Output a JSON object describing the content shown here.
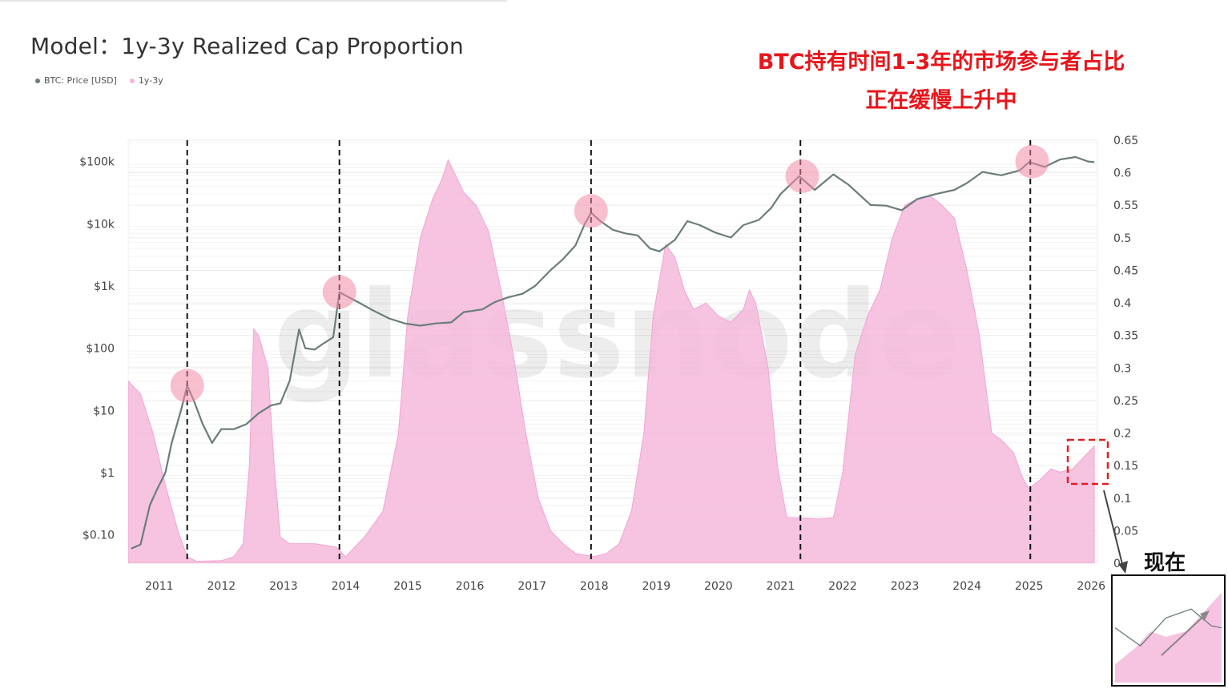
{
  "title": "Model：1y-3y Realized Cap Proportion",
  "legend": [
    {
      "label": "BTC: Price [USD]",
      "color": "#6b7d7a"
    },
    {
      "label": "1y-3y",
      "color": "#f5b8dc"
    }
  ],
  "annotation": {
    "line1": "BTC持有时间1-3年的市场参与者占比",
    "line2": "正在缓慢上升中",
    "color": "#e8151b"
  },
  "now_label": "现在",
  "watermark": "glassnode",
  "chart_data": {
    "type": "area",
    "x_axis": {
      "ticks": [
        "2011",
        "2012",
        "2013",
        "2014",
        "2015",
        "2016",
        "2017",
        "2018",
        "2019",
        "2020",
        "2021",
        "2022",
        "2023",
        "2024",
        "2025",
        "2026"
      ],
      "range": [
        2010.5,
        2026.1
      ]
    },
    "y_left": {
      "scale": "log",
      "ticks": [
        "$0.10",
        "$1",
        "$10",
        "$100",
        "$1k",
        "$10k",
        "$100k"
      ],
      "range": [
        0.035,
        220000
      ]
    },
    "y_right": {
      "ticks": [
        "0",
        "0.05",
        "0.1",
        "0.15",
        "0.2",
        "0.25",
        "0.3",
        "0.35",
        "0.4",
        "0.45",
        "0.5",
        "0.55",
        "0.6",
        "0.65"
      ],
      "range": [
        0,
        0.65
      ]
    },
    "grid": true,
    "series": [
      {
        "name": "1y-3y",
        "axis": "right",
        "color": "#f5b8dc",
        "points": [
          [
            2010.5,
            0.28
          ],
          [
            2010.7,
            0.26
          ],
          [
            2010.9,
            0.2
          ],
          [
            2011.1,
            0.12
          ],
          [
            2011.3,
            0.05
          ],
          [
            2011.45,
            0.01
          ],
          [
            2011.6,
            0.003
          ],
          [
            2012.0,
            0.004
          ],
          [
            2012.2,
            0.01
          ],
          [
            2012.35,
            0.03
          ],
          [
            2012.45,
            0.15
          ],
          [
            2012.52,
            0.36
          ],
          [
            2012.6,
            0.35
          ],
          [
            2012.75,
            0.3
          ],
          [
            2012.85,
            0.15
          ],
          [
            2012.95,
            0.04
          ],
          [
            2013.1,
            0.03
          ],
          [
            2013.5,
            0.03
          ],
          [
            2013.85,
            0.025
          ],
          [
            2014.0,
            0.01
          ],
          [
            2014.3,
            0.04
          ],
          [
            2014.6,
            0.08
          ],
          [
            2014.85,
            0.2
          ],
          [
            2015.0,
            0.38
          ],
          [
            2015.2,
            0.5
          ],
          [
            2015.4,
            0.56
          ],
          [
            2015.55,
            0.59
          ],
          [
            2015.65,
            0.62
          ],
          [
            2015.75,
            0.6
          ],
          [
            2015.9,
            0.57
          ],
          [
            2016.1,
            0.55
          ],
          [
            2016.3,
            0.51
          ],
          [
            2016.5,
            0.42
          ],
          [
            2016.7,
            0.32
          ],
          [
            2016.9,
            0.2
          ],
          [
            2017.1,
            0.1
          ],
          [
            2017.3,
            0.05
          ],
          [
            2017.5,
            0.03
          ],
          [
            2017.7,
            0.015
          ],
          [
            2018.0,
            0.01
          ],
          [
            2018.2,
            0.015
          ],
          [
            2018.4,
            0.03
          ],
          [
            2018.6,
            0.08
          ],
          [
            2018.8,
            0.2
          ],
          [
            2018.95,
            0.38
          ],
          [
            2019.15,
            0.49
          ],
          [
            2019.3,
            0.47
          ],
          [
            2019.45,
            0.42
          ],
          [
            2019.6,
            0.39
          ],
          [
            2019.8,
            0.4
          ],
          [
            2020.0,
            0.38
          ],
          [
            2020.2,
            0.37
          ],
          [
            2020.4,
            0.39
          ],
          [
            2020.5,
            0.42
          ],
          [
            2020.6,
            0.4
          ],
          [
            2020.8,
            0.3
          ],
          [
            2020.95,
            0.15
          ],
          [
            2021.1,
            0.07
          ],
          [
            2021.3,
            0.07
          ],
          [
            2021.6,
            0.068
          ],
          [
            2021.85,
            0.07
          ],
          [
            2022.0,
            0.14
          ],
          [
            2022.2,
            0.32
          ],
          [
            2022.4,
            0.38
          ],
          [
            2022.6,
            0.42
          ],
          [
            2022.8,
            0.5
          ],
          [
            2023.0,
            0.55
          ],
          [
            2023.2,
            0.56
          ],
          [
            2023.4,
            0.565
          ],
          [
            2023.6,
            0.55
          ],
          [
            2023.8,
            0.53
          ],
          [
            2024.0,
            0.45
          ],
          [
            2024.2,
            0.35
          ],
          [
            2024.4,
            0.2
          ],
          [
            2024.55,
            0.19
          ],
          [
            2024.75,
            0.17
          ],
          [
            2024.9,
            0.13
          ],
          [
            2025.0,
            0.115
          ],
          [
            2025.2,
            0.13
          ],
          [
            2025.35,
            0.145
          ],
          [
            2025.5,
            0.14
          ],
          [
            2025.7,
            0.145
          ],
          [
            2025.9,
            0.165
          ],
          [
            2026.05,
            0.18
          ]
        ]
      },
      {
        "name": "BTC: Price [USD]",
        "axis": "left",
        "color": "#6b7d7a",
        "points": [
          [
            2010.55,
            0.06
          ],
          [
            2010.7,
            0.07
          ],
          [
            2010.85,
            0.3
          ],
          [
            2010.95,
            0.5
          ],
          [
            2011.1,
            1
          ],
          [
            2011.2,
            3
          ],
          [
            2011.35,
            10
          ],
          [
            2011.45,
            25
          ],
          [
            2011.55,
            15
          ],
          [
            2011.7,
            6
          ],
          [
            2011.85,
            3
          ],
          [
            2012.0,
            5
          ],
          [
            2012.2,
            5
          ],
          [
            2012.4,
            6
          ],
          [
            2012.6,
            9
          ],
          [
            2012.8,
            12
          ],
          [
            2012.95,
            13
          ],
          [
            2013.1,
            30
          ],
          [
            2013.25,
            200
          ],
          [
            2013.35,
            100
          ],
          [
            2013.5,
            95
          ],
          [
            2013.65,
            120
          ],
          [
            2013.8,
            150
          ],
          [
            2013.9,
            800
          ],
          [
            2014.0,
            700
          ],
          [
            2014.2,
            550
          ],
          [
            2014.45,
            400
          ],
          [
            2014.7,
            300
          ],
          [
            2014.95,
            250
          ],
          [
            2015.2,
            230
          ],
          [
            2015.45,
            250
          ],
          [
            2015.7,
            260
          ],
          [
            2015.9,
            380
          ],
          [
            2016.2,
            420
          ],
          [
            2016.4,
            550
          ],
          [
            2016.6,
            650
          ],
          [
            2016.85,
            750
          ],
          [
            2017.05,
            1000
          ],
          [
            2017.3,
            1800
          ],
          [
            2017.5,
            2700
          ],
          [
            2017.7,
            4500
          ],
          [
            2017.85,
            10000
          ],
          [
            2017.95,
            15000
          ],
          [
            2018.1,
            11000
          ],
          [
            2018.3,
            8000
          ],
          [
            2018.5,
            7000
          ],
          [
            2018.7,
            6500
          ],
          [
            2018.9,
            4000
          ],
          [
            2019.05,
            3600
          ],
          [
            2019.3,
            5500
          ],
          [
            2019.5,
            11000
          ],
          [
            2019.7,
            9500
          ],
          [
            2019.95,
            7200
          ],
          [
            2020.2,
            6000
          ],
          [
            2020.4,
            9500
          ],
          [
            2020.65,
            11500
          ],
          [
            2020.85,
            18000
          ],
          [
            2021.0,
            30000
          ],
          [
            2021.3,
            58000
          ],
          [
            2021.55,
            35000
          ],
          [
            2021.85,
            62000
          ],
          [
            2022.1,
            42000
          ],
          [
            2022.45,
            20000
          ],
          [
            2022.7,
            19500
          ],
          [
            2022.95,
            16500
          ],
          [
            2023.2,
            25000
          ],
          [
            2023.5,
            30000
          ],
          [
            2023.8,
            35000
          ],
          [
            2024.0,
            45000
          ],
          [
            2024.25,
            68000
          ],
          [
            2024.55,
            60000
          ],
          [
            2024.85,
            72000
          ],
          [
            2025.0,
            98000
          ],
          [
            2025.25,
            82000
          ],
          [
            2025.5,
            108000
          ],
          [
            2025.75,
            118000
          ],
          [
            2025.95,
            100000
          ],
          [
            2026.05,
            98000
          ]
        ]
      }
    ],
    "cycle_lines": [
      2011.45,
      2013.9,
      2017.95,
      2021.32,
      2025.02
    ],
    "peak_markers": [
      [
        2011.45,
        25
      ],
      [
        2013.9,
        800
      ],
      [
        2017.95,
        16000
      ],
      [
        2021.35,
        58000
      ],
      [
        2025.05,
        100000
      ]
    ]
  }
}
